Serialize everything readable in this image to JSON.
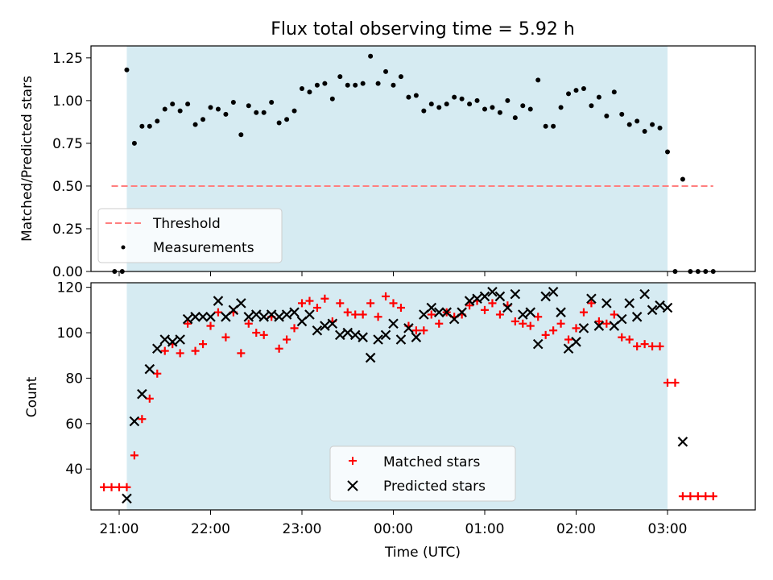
{
  "chart_data": [
    {
      "type": "scatter",
      "title": "Flux total observing time = 5.92 h",
      "xlabel": "",
      "ylabel": "Matched/Predicted stars",
      "ylim": [
        0,
        1.32
      ],
      "yticks": [
        "0.00",
        "0.25",
        "0.50",
        "0.75",
        "1.00",
        "1.25"
      ],
      "shaded_span": {
        "start": "21:05",
        "end": "03:00",
        "color": "#add8e6"
      },
      "threshold": {
        "name": "Threshold",
        "value": 0.5,
        "x_start": "20:55",
        "x_end": "03:30",
        "color": "#ff7f7f"
      },
      "legend": {
        "position": "lower-left",
        "entries": [
          "Threshold",
          "Measurements"
        ]
      },
      "series": [
        {
          "name": "Measurements",
          "color": "#000000",
          "marker": "dot",
          "points": [
            [
              "20:57",
              0.0
            ],
            [
              "21:02",
              0.0
            ],
            [
              "21:05",
              1.18
            ],
            [
              "21:10",
              0.75
            ],
            [
              "21:15",
              0.85
            ],
            [
              "21:20",
              0.85
            ],
            [
              "21:25",
              0.88
            ],
            [
              "21:30",
              0.95
            ],
            [
              "21:35",
              0.98
            ],
            [
              "21:40",
              0.94
            ],
            [
              "21:45",
              0.98
            ],
            [
              "21:50",
              0.86
            ],
            [
              "21:55",
              0.89
            ],
            [
              "22:00",
              0.96
            ],
            [
              "22:05",
              0.95
            ],
            [
              "22:10",
              0.92
            ],
            [
              "22:15",
              0.99
            ],
            [
              "22:20",
              0.8
            ],
            [
              "22:25",
              0.97
            ],
            [
              "22:30",
              0.93
            ],
            [
              "22:35",
              0.93
            ],
            [
              "22:40",
              0.99
            ],
            [
              "22:45",
              0.87
            ],
            [
              "22:50",
              0.89
            ],
            [
              "22:55",
              0.94
            ],
            [
              "23:00",
              1.07
            ],
            [
              "23:05",
              1.05
            ],
            [
              "23:10",
              1.09
            ],
            [
              "23:15",
              1.1
            ],
            [
              "23:20",
              1.01
            ],
            [
              "23:25",
              1.14
            ],
            [
              "23:30",
              1.09
            ],
            [
              "23:35",
              1.09
            ],
            [
              "23:40",
              1.1
            ],
            [
              "23:45",
              1.26
            ],
            [
              "23:50",
              1.1
            ],
            [
              "23:55",
              1.17
            ],
            [
              "00:00",
              1.09
            ],
            [
              "00:05",
              1.14
            ],
            [
              "00:10",
              1.02
            ],
            [
              "00:15",
              1.03
            ],
            [
              "00:20",
              0.94
            ],
            [
              "00:25",
              0.98
            ],
            [
              "00:30",
              0.96
            ],
            [
              "00:35",
              0.98
            ],
            [
              "00:40",
              1.02
            ],
            [
              "00:45",
              1.01
            ],
            [
              "00:50",
              0.98
            ],
            [
              "00:55",
              1.0
            ],
            [
              "01:00",
              0.95
            ],
            [
              "01:05",
              0.96
            ],
            [
              "01:10",
              0.93
            ],
            [
              "01:15",
              1.0
            ],
            [
              "01:20",
              0.9
            ],
            [
              "01:25",
              0.97
            ],
            [
              "01:30",
              0.95
            ],
            [
              "01:35",
              1.12
            ],
            [
              "01:40",
              0.85
            ],
            [
              "01:45",
              0.85
            ],
            [
              "01:50",
              0.96
            ],
            [
              "01:55",
              1.04
            ],
            [
              "02:00",
              1.06
            ],
            [
              "02:05",
              1.07
            ],
            [
              "02:10",
              0.97
            ],
            [
              "02:15",
              1.02
            ],
            [
              "02:20",
              0.91
            ],
            [
              "02:25",
              1.05
            ],
            [
              "02:30",
              0.92
            ],
            [
              "02:35",
              0.86
            ],
            [
              "02:40",
              0.88
            ],
            [
              "02:45",
              0.82
            ],
            [
              "02:50",
              0.86
            ],
            [
              "02:55",
              0.84
            ],
            [
              "03:00",
              0.7
            ],
            [
              "03:05",
              0.0
            ],
            [
              "03:10",
              0.54
            ],
            [
              "03:15",
              0.0
            ],
            [
              "03:20",
              0.0
            ],
            [
              "03:25",
              0.0
            ],
            [
              "03:30",
              0.0
            ]
          ]
        }
      ]
    },
    {
      "type": "scatter",
      "title": "",
      "xlabel": "Time (UTC)",
      "ylabel": "Count",
      "ylim": [
        22,
        122
      ],
      "yticks": [
        "40",
        "60",
        "80",
        "100",
        "120"
      ],
      "xticks": [
        "21:00",
        "22:00",
        "23:00",
        "00:00",
        "01:00",
        "02:00",
        "03:00"
      ],
      "shaded_span": {
        "start": "21:05",
        "end": "03:00",
        "color": "#add8e6"
      },
      "legend": {
        "position": "lower-center",
        "entries": [
          "Matched stars",
          "Predicted stars"
        ]
      },
      "series": [
        {
          "name": "Matched stars",
          "color": "#ff0000",
          "marker": "plus",
          "points": [
            [
              "20:50",
              32
            ],
            [
              "20:55",
              32
            ],
            [
              "21:00",
              32
            ],
            [
              "21:05",
              32
            ],
            [
              "21:10",
              46
            ],
            [
              "21:15",
              62
            ],
            [
              "21:20",
              71
            ],
            [
              "21:25",
              82
            ],
            [
              "21:30",
              92
            ],
            [
              "21:35",
              95
            ],
            [
              "21:40",
              91
            ],
            [
              "21:45",
              104
            ],
            [
              "21:50",
              92
            ],
            [
              "21:55",
              95
            ],
            [
              "22:00",
              103
            ],
            [
              "22:05",
              109
            ],
            [
              "22:10",
              98
            ],
            [
              "22:15",
              109
            ],
            [
              "22:20",
              91
            ],
            [
              "22:25",
              104
            ],
            [
              "22:30",
              100
            ],
            [
              "22:35",
              99
            ],
            [
              "22:40",
              107
            ],
            [
              "22:45",
              93
            ],
            [
              "22:50",
              97
            ],
            [
              "22:55",
              102
            ],
            [
              "23:00",
              113
            ],
            [
              "23:05",
              114
            ],
            [
              "23:10",
              111
            ],
            [
              "23:15",
              115
            ],
            [
              "23:20",
              105
            ],
            [
              "23:25",
              113
            ],
            [
              "23:30",
              109
            ],
            [
              "23:35",
              108
            ],
            [
              "23:40",
              108
            ],
            [
              "23:45",
              113
            ],
            [
              "23:50",
              107
            ],
            [
              "23:55",
              116
            ],
            [
              "00:00",
              113
            ],
            [
              "00:05",
              111
            ],
            [
              "00:10",
              103
            ],
            [
              "00:15",
              101
            ],
            [
              "00:20",
              101
            ],
            [
              "00:25",
              108
            ],
            [
              "00:30",
              104
            ],
            [
              "00:35",
              109
            ],
            [
              "00:40",
              107
            ],
            [
              "00:45",
              108
            ],
            [
              "00:50",
              112
            ],
            [
              "00:55",
              114
            ],
            [
              "01:00",
              110
            ],
            [
              "01:05",
              113
            ],
            [
              "01:10",
              108
            ],
            [
              "01:15",
              112
            ],
            [
              "01:20",
              105
            ],
            [
              "01:25",
              104
            ],
            [
              "01:30",
              103
            ],
            [
              "01:35",
              107
            ],
            [
              "01:40",
              99
            ],
            [
              "01:45",
              101
            ],
            [
              "01:50",
              104
            ],
            [
              "01:55",
              97
            ],
            [
              "02:00",
              102
            ],
            [
              "02:05",
              109
            ],
            [
              "02:10",
              113
            ],
            [
              "02:15",
              105
            ],
            [
              "02:20",
              104
            ],
            [
              "02:25",
              108
            ],
            [
              "02:30",
              98
            ],
            [
              "02:35",
              97
            ],
            [
              "02:40",
              94
            ],
            [
              "02:45",
              95
            ],
            [
              "02:50",
              94
            ],
            [
              "02:55",
              94
            ],
            [
              "03:00",
              78
            ],
            [
              "03:05",
              78
            ],
            [
              "03:10",
              28
            ],
            [
              "03:15",
              28
            ],
            [
              "03:20",
              28
            ],
            [
              "03:25",
              28
            ],
            [
              "03:30",
              28
            ]
          ]
        },
        {
          "name": "Predicted stars",
          "color": "#000000",
          "marker": "x",
          "points": [
            [
              "21:05",
              27
            ],
            [
              "21:10",
              61
            ],
            [
              "21:15",
              73
            ],
            [
              "21:20",
              84
            ],
            [
              "21:25",
              93
            ],
            [
              "21:30",
              97
            ],
            [
              "21:35",
              96
            ],
            [
              "21:40",
              97
            ],
            [
              "21:45",
              106
            ],
            [
              "21:50",
              107
            ],
            [
              "21:55",
              107
            ],
            [
              "22:00",
              107
            ],
            [
              "22:05",
              114
            ],
            [
              "22:10",
              107
            ],
            [
              "22:15",
              110
            ],
            [
              "22:20",
              113
            ],
            [
              "22:25",
              107
            ],
            [
              "22:30",
              108
            ],
            [
              "22:35",
              107
            ],
            [
              "22:40",
              108
            ],
            [
              "22:45",
              107
            ],
            [
              "22:50",
              108
            ],
            [
              "22:55",
              109
            ],
            [
              "23:00",
              105
            ],
            [
              "23:05",
              108
            ],
            [
              "23:10",
              101
            ],
            [
              "23:15",
              103
            ],
            [
              "23:20",
              104
            ],
            [
              "23:25",
              99
            ],
            [
              "23:30",
              100
            ],
            [
              "23:35",
              99
            ],
            [
              "23:40",
              98
            ],
            [
              "23:45",
              89
            ],
            [
              "23:50",
              97
            ],
            [
              "23:55",
              99
            ],
            [
              "00:00",
              104
            ],
            [
              "00:05",
              97
            ],
            [
              "00:10",
              102
            ],
            [
              "00:15",
              98
            ],
            [
              "00:20",
              108
            ],
            [
              "00:25",
              111
            ],
            [
              "00:30",
              109
            ],
            [
              "00:35",
              109
            ],
            [
              "00:40",
              106
            ],
            [
              "00:45",
              109
            ],
            [
              "00:50",
              114
            ],
            [
              "00:55",
              115
            ],
            [
              "01:00",
              116
            ],
            [
              "01:05",
              118
            ],
            [
              "01:10",
              116
            ],
            [
              "01:15",
              111
            ],
            [
              "01:20",
              117
            ],
            [
              "01:25",
              108
            ],
            [
              "01:30",
              109
            ],
            [
              "01:35",
              95
            ],
            [
              "01:40",
              116
            ],
            [
              "01:45",
              118
            ],
            [
              "01:50",
              109
            ],
            [
              "01:55",
              93
            ],
            [
              "02:00",
              96
            ],
            [
              "02:05",
              102
            ],
            [
              "02:10",
              115
            ],
            [
              "02:15",
              103
            ],
            [
              "02:20",
              113
            ],
            [
              "02:25",
              103
            ],
            [
              "02:30",
              106
            ],
            [
              "02:35",
              113
            ],
            [
              "02:40",
              107
            ],
            [
              "02:45",
              117
            ],
            [
              "02:50",
              110
            ],
            [
              "02:55",
              112
            ],
            [
              "03:00",
              111
            ],
            [
              "03:10",
              52
            ]
          ]
        }
      ]
    }
  ]
}
